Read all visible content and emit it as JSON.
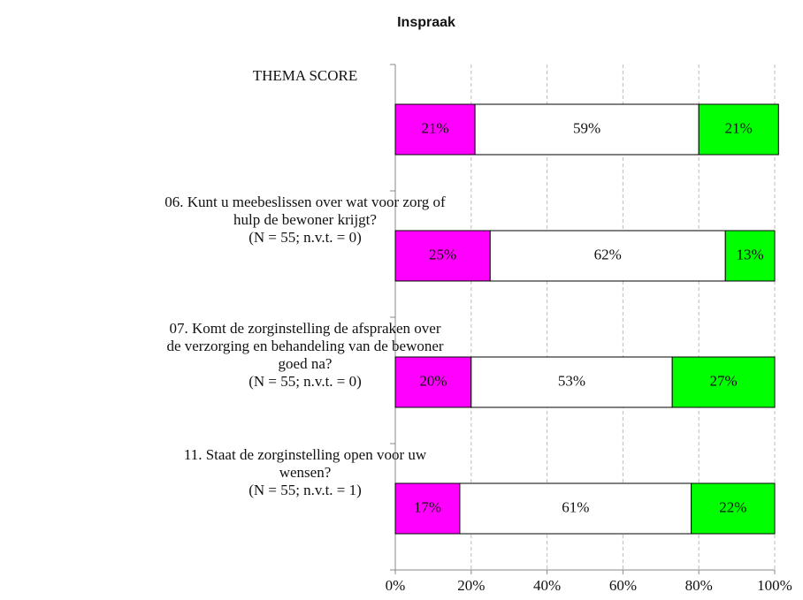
{
  "chart_data": {
    "type": "stacked_barh",
    "title": "Inspraak",
    "categories": [
      "THEMA SCORE",
      "06. Kunt u meebeslissen over wat voor zorg of\nhulp de bewoner krijgt?\n(N = 55; n.v.t. = 0)",
      "07. Komt de zorginstelling de afspraken over\nde verzorging en behandeling van de bewoner\ngoed na?\n(N = 55; n.v.t. = 0)",
      "11. Staat de zorginstelling open voor uw\nwensen?\n(N = 55; n.v.t. = 1)"
    ],
    "series": [
      {
        "color": "#ff00ff",
        "values": [
          21,
          25,
          20,
          17
        ],
        "value_labels": [
          "21%",
          "25%",
          "20%",
          "17%"
        ]
      },
      {
        "color": "#ffffff",
        "values": [
          59,
          62,
          53,
          61
        ],
        "value_labels": [
          "59%",
          "62%",
          "53%",
          "61%"
        ]
      },
      {
        "color": "#00ff00",
        "values": [
          21,
          13,
          27,
          22
        ],
        "value_labels": [
          "21%",
          "13%",
          "27%",
          "22%"
        ]
      }
    ],
    "xlim": [
      0,
      100
    ],
    "xticks": [
      {
        "value": 0,
        "label": "0%"
      },
      {
        "value": 20,
        "label": "20%"
      },
      {
        "value": 40,
        "label": "40%"
      },
      {
        "value": 60,
        "label": "60%"
      },
      {
        "value": 80,
        "label": "80%"
      },
      {
        "value": 100,
        "label": "100%"
      }
    ],
    "grid": true
  }
}
